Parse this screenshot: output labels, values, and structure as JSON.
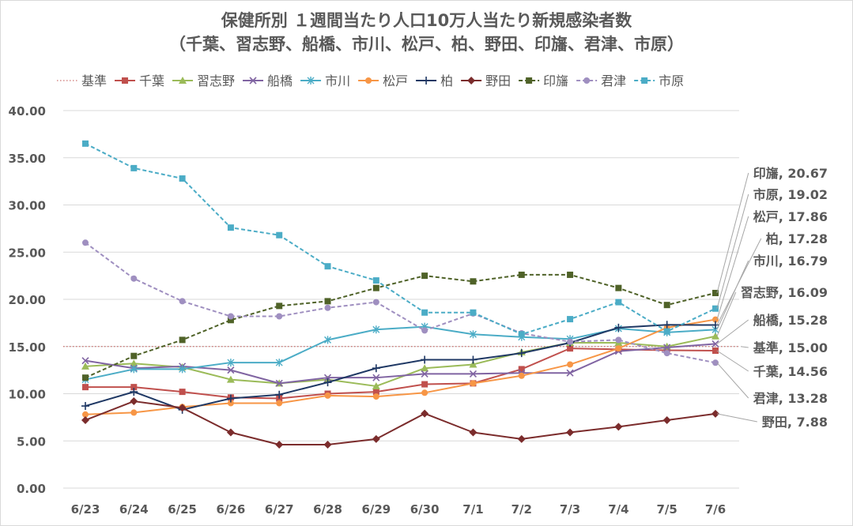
{
  "chart_data": {
    "type": "line",
    "title": "保健所別 １週間当たり人口10万人当たり新規感染者数",
    "subtitle": "（千葉、習志野、船橋、市川、松戸、柏、野田、印旛、君津、市原）",
    "categories": [
      "6/23",
      "6/24",
      "6/25",
      "6/26",
      "6/27",
      "6/28",
      "6/29",
      "6/30",
      "7/1",
      "7/2",
      "7/3",
      "7/4",
      "7/5",
      "7/6"
    ],
    "ylim": [
      0,
      40
    ],
    "yticks": [
      "0.00",
      "5.00",
      "10.00",
      "15.00",
      "20.00",
      "25.00",
      "30.00",
      "35.00",
      "40.00"
    ],
    "grid": true,
    "legend_position": "top",
    "series": [
      {
        "name": "基準",
        "color": "#c0504d",
        "style": "dotted",
        "marker": "none",
        "values": [
          15,
          15,
          15,
          15,
          15,
          15,
          15,
          15,
          15,
          15,
          15,
          15,
          15,
          15
        ]
      },
      {
        "name": "千葉",
        "color": "#c0504d",
        "style": "solid",
        "marker": "square",
        "values": [
          10.7,
          10.7,
          10.2,
          9.6,
          9.5,
          10.0,
          10.2,
          11.0,
          11.1,
          12.6,
          14.8,
          14.7,
          14.6,
          14.56
        ]
      },
      {
        "name": "習志野",
        "color": "#9bbb59",
        "style": "solid",
        "marker": "triangle",
        "values": [
          12.9,
          13.2,
          12.8,
          11.5,
          11.1,
          11.5,
          10.8,
          12.7,
          13.1,
          14.4,
          15.4,
          15.4,
          15.0,
          16.09
        ]
      },
      {
        "name": "船橋",
        "color": "#8064a2",
        "style": "solid",
        "marker": "x",
        "values": [
          13.5,
          12.7,
          12.9,
          12.5,
          11.1,
          11.7,
          11.7,
          12.1,
          12.1,
          12.2,
          12.2,
          14.5,
          14.9,
          15.28
        ]
      },
      {
        "name": "市川",
        "color": "#4bacc6",
        "style": "solid",
        "marker": "asterisk",
        "values": [
          11.5,
          12.6,
          12.6,
          13.3,
          13.3,
          15.7,
          16.8,
          17.1,
          16.3,
          16.0,
          15.8,
          16.9,
          16.5,
          16.79
        ]
      },
      {
        "name": "松戸",
        "color": "#f79646",
        "style": "solid",
        "marker": "circle",
        "values": [
          7.8,
          8.0,
          8.6,
          9.0,
          9.0,
          9.8,
          9.7,
          10.1,
          11.1,
          11.9,
          13.1,
          14.8,
          17.0,
          17.86
        ]
      },
      {
        "name": "柏",
        "color": "#1f3864",
        "style": "solid",
        "marker": "plus",
        "values": [
          8.7,
          10.2,
          8.3,
          9.5,
          9.9,
          11.2,
          12.7,
          13.6,
          13.6,
          14.3,
          15.4,
          17.0,
          17.3,
          17.28
        ]
      },
      {
        "name": "野田",
        "color": "#7b2c2c",
        "style": "solid",
        "marker": "diamond",
        "values": [
          7.2,
          9.2,
          8.5,
          5.9,
          4.6,
          4.6,
          5.2,
          7.9,
          5.9,
          5.2,
          5.9,
          6.5,
          7.2,
          7.88
        ]
      },
      {
        "name": "印旛",
        "color": "#4f6228",
        "style": "dashed",
        "marker": "square",
        "values": [
          11.7,
          14.0,
          15.7,
          17.8,
          19.3,
          19.8,
          21.2,
          22.5,
          21.9,
          22.6,
          22.6,
          21.2,
          19.4,
          20.67
        ]
      },
      {
        "name": "君津",
        "color": "#9f8fc0",
        "style": "dashed",
        "marker": "circle",
        "values": [
          26.0,
          22.2,
          19.8,
          18.2,
          18.2,
          19.1,
          19.7,
          16.7,
          18.5,
          16.4,
          15.5,
          15.7,
          14.3,
          13.28
        ]
      },
      {
        "name": "市原",
        "color": "#4bacc6",
        "style": "dashed",
        "marker": "square",
        "values": [
          36.5,
          33.9,
          32.8,
          27.6,
          26.8,
          23.5,
          22.0,
          18.6,
          18.6,
          16.3,
          17.9,
          19.7,
          16.6,
          19.02
        ]
      }
    ],
    "annotations": [
      {
        "text": "印旛, 20.67",
        "series": "印旛"
      },
      {
        "text": "市原, 19.02",
        "series": "市原"
      },
      {
        "text": "松戸, 17.86",
        "series": "松戸"
      },
      {
        "text": "柏, 17.28",
        "series": "柏"
      },
      {
        "text": "市川, 16.79",
        "series": "市川"
      },
      {
        "text": "習志野, 16.09",
        "series": "習志野"
      },
      {
        "text": "船橋, 15.28",
        "series": "船橋"
      },
      {
        "text": "基準, 15.00",
        "series": "基準"
      },
      {
        "text": "千葉, 14.56",
        "series": "千葉"
      },
      {
        "text": "君津, 13.28",
        "series": "君津"
      },
      {
        "text": "野田, 7.88",
        "series": "野田"
      }
    ]
  }
}
